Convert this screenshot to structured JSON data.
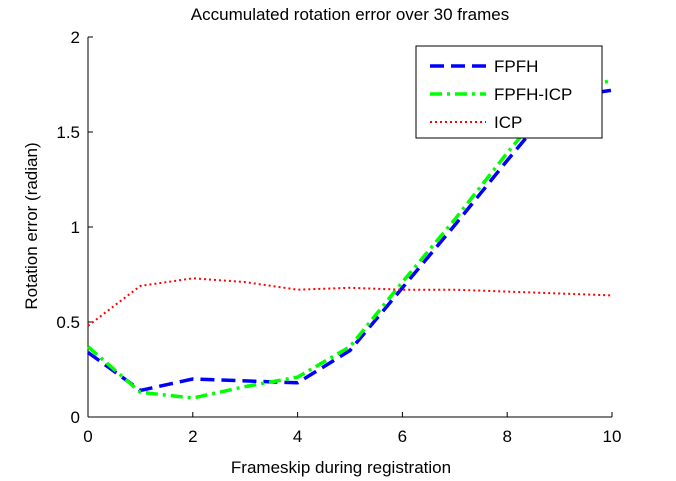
{
  "chart_data": {
    "type": "line",
    "title": "Accumulated rotation error over 30 frames",
    "xlabel": "Frameskip during registration",
    "ylabel": "Rotation error (radian)",
    "xlim": [
      0,
      10
    ],
    "ylim": [
      0,
      2
    ],
    "xticks": [
      0,
      2,
      4,
      6,
      8,
      10
    ],
    "yticks": [
      0,
      0.5,
      1,
      1.5,
      2
    ],
    "ytick_labels": [
      "0",
      "0.5",
      "1",
      "1.5",
      "2"
    ],
    "grid": false,
    "legend_position": "top-right",
    "x": [
      0,
      1,
      2,
      3,
      4,
      5,
      6,
      7,
      8,
      9,
      10
    ],
    "series": [
      {
        "name": "FPFH",
        "color": "#0000ff",
        "style": "dashed",
        "values": [
          0.34,
          0.14,
          0.2,
          0.19,
          0.18,
          0.35,
          0.68,
          1.01,
          1.35,
          1.68,
          1.72
        ]
      },
      {
        "name": "FPFH-ICP",
        "color": "#00ff00",
        "style": "dashdot",
        "values": [
          0.37,
          0.13,
          0.1,
          0.16,
          0.21,
          0.37,
          0.71,
          1.04,
          1.39,
          1.72,
          1.77
        ]
      },
      {
        "name": "ICP",
        "color": "#ff0000",
        "style": "dotted",
        "values": [
          0.48,
          0.69,
          0.73,
          0.71,
          0.67,
          0.68,
          0.67,
          0.67,
          0.66,
          0.65,
          0.64
        ]
      }
    ]
  }
}
